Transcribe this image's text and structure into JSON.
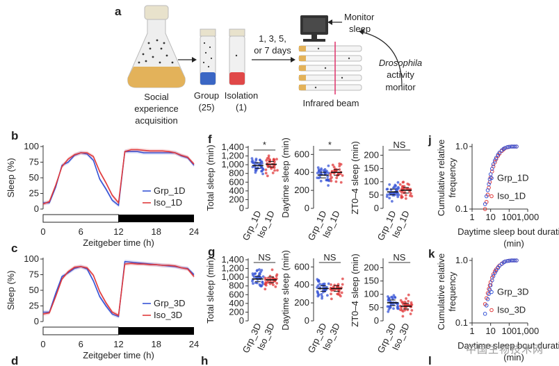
{
  "colors": {
    "group": "#3553d6",
    "iso": "#e0393b",
    "text": "#222222",
    "light_bar": "#ffffff",
    "dark_bar": "#000000"
  },
  "panel_a": {
    "label": "a",
    "flask_caption": [
      "Social",
      "experience",
      "acquisition"
    ],
    "group_caption": [
      "Group",
      "(25)"
    ],
    "iso_caption": [
      "Isolation",
      "(1)"
    ],
    "days": [
      "1, 3, 5,",
      "or 7 days"
    ],
    "monitor_sleep": [
      "Monitor",
      "sleep"
    ],
    "dam": [
      "Drosophila",
      "activity",
      "monitor"
    ],
    "beam": "Infrared beam"
  },
  "watermark": "中国生物技术网",
  "chart_data": [
    {
      "id": "b",
      "type": "line",
      "panel": "b",
      "ylabel": "Sleep (%)",
      "xlabel": "Zeitgeber time (h)",
      "xticks": [
        "0",
        "6",
        "12",
        "18",
        "24"
      ],
      "yticks": [
        "0",
        "25",
        "50",
        "75",
        "100"
      ],
      "xlim": [
        0,
        24
      ],
      "ylim": [
        0,
        100
      ],
      "legend_position": "bottom-right",
      "light_bar": "light 0-12 h, dark 12-24 h",
      "series": [
        {
          "name": "Grp_1D",
          "color": "#3553d6",
          "x": [
            0,
            1,
            2,
            3,
            4,
            5,
            6,
            7,
            8,
            9,
            10,
            11,
            12,
            13,
            14,
            15,
            16,
            17,
            18,
            19,
            20,
            21,
            22,
            23,
            24
          ],
          "y": [
            10,
            10,
            35,
            70,
            75,
            86,
            90,
            88,
            78,
            48,
            32,
            14,
            6,
            92,
            92,
            92,
            90,
            90,
            90,
            90,
            90,
            90,
            85,
            82,
            70
          ]
        },
        {
          "name": "Iso_1D",
          "color": "#e0393b",
          "x": [
            0,
            1,
            2,
            3,
            4,
            5,
            6,
            7,
            8,
            9,
            10,
            11,
            12,
            13,
            14,
            15,
            16,
            17,
            18,
            19,
            20,
            21,
            22,
            23,
            24
          ],
          "y": [
            8,
            12,
            38,
            68,
            80,
            87,
            90,
            90,
            84,
            60,
            42,
            22,
            10,
            92,
            95,
            95,
            94,
            93,
            93,
            93,
            92,
            90,
            86,
            83,
            72
          ]
        }
      ]
    },
    {
      "id": "c",
      "type": "line",
      "panel": "c",
      "ylabel": "Sleep (%)",
      "xlabel": "Zeitgeber time (h)",
      "xticks": [
        "0",
        "6",
        "12",
        "18",
        "24"
      ],
      "yticks": [
        "0",
        "25",
        "50",
        "75",
        "100"
      ],
      "xlim": [
        0,
        24
      ],
      "ylim": [
        0,
        100
      ],
      "legend_position": "bottom-right",
      "light_bar": "light 0-12 h, dark 12-24 h",
      "series": [
        {
          "name": "Grp_3D",
          "color": "#3553d6",
          "x": [
            0,
            1,
            2,
            3,
            4,
            5,
            6,
            7,
            8,
            9,
            10,
            11,
            12,
            13,
            14,
            15,
            16,
            17,
            18,
            19,
            20,
            21,
            22,
            23,
            24
          ],
          "y": [
            15,
            15,
            45,
            72,
            78,
            85,
            88,
            84,
            65,
            40,
            25,
            12,
            8,
            96,
            95,
            94,
            93,
            92,
            91,
            90,
            89,
            88,
            86,
            85,
            75
          ]
        },
        {
          "name": "Iso_3D",
          "color": "#e0393b",
          "x": [
            0,
            1,
            2,
            3,
            4,
            5,
            6,
            7,
            8,
            9,
            10,
            11,
            12,
            13,
            14,
            15,
            16,
            17,
            18,
            19,
            20,
            21,
            22,
            23,
            24
          ],
          "y": [
            12,
            14,
            40,
            68,
            80,
            87,
            88,
            86,
            74,
            48,
            30,
            15,
            10,
            92,
            93,
            92,
            92,
            91,
            91,
            90,
            90,
            89,
            86,
            84,
            72
          ]
        }
      ]
    },
    {
      "id": "f1",
      "type": "scatter",
      "panel": "f",
      "ylabel": "Total sleep (min)",
      "categories": [
        "Grp_1D",
        "Iso_1D"
      ],
      "yticks": [
        "0",
        "200",
        "400",
        "600",
        "800",
        "1,000",
        "1,200",
        "1,400"
      ],
      "ylim": [
        0,
        1400
      ],
      "significance": "*",
      "means": [
        980,
        1010
      ]
    },
    {
      "id": "f2",
      "type": "scatter",
      "panel": "",
      "ylabel": "Daytime sleep (min)",
      "categories": [
        "Grp_1D",
        "Iso_1D"
      ],
      "yticks": [
        "0",
        "200",
        "400",
        "600"
      ],
      "ylim": [
        0,
        680
      ],
      "significance": "*",
      "means": [
        370,
        400
      ]
    },
    {
      "id": "f3",
      "type": "scatter",
      "panel": "",
      "ylabel": "ZT0–4 sleep (min)",
      "categories": [
        "Grp_1D",
        "Iso_1D"
      ],
      "yticks": [
        "0",
        "50",
        "100",
        "150",
        "200"
      ],
      "ylim": [
        0,
        230
      ],
      "significance": "NS",
      "means": [
        62,
        68
      ]
    },
    {
      "id": "g1",
      "type": "scatter",
      "panel": "g",
      "ylabel": "Total sleep (min)",
      "categories": [
        "Grp_3D",
        "Iso_3D"
      ],
      "yticks": [
        "0",
        "200",
        "400",
        "600",
        "800",
        "1,000",
        "1,200",
        "1,400"
      ],
      "ylim": [
        0,
        1400
      ],
      "significance": "NS",
      "means": [
        960,
        940
      ]
    },
    {
      "id": "g2",
      "type": "scatter",
      "panel": "",
      "ylabel": "Daytime sleep (min)",
      "categories": [
        "Grp_3D",
        "Iso_3D"
      ],
      "yticks": [
        "0",
        "200",
        "400",
        "600"
      ],
      "ylim": [
        0,
        680
      ],
      "significance": "NS",
      "means": [
        360,
        360
      ]
    },
    {
      "id": "g3",
      "type": "scatter",
      "panel": "",
      "ylabel": "ZT0–4 sleep (min)",
      "categories": [
        "Grp_3D",
        "Iso_3D"
      ],
      "yticks": [
        "0",
        "50",
        "100",
        "150",
        "200"
      ],
      "ylim": [
        0,
        230
      ],
      "significance": "NS",
      "means": [
        68,
        55
      ]
    },
    {
      "id": "j",
      "type": "scatter",
      "panel": "j",
      "ylabel": "Cumulative relative frequency",
      "xlabel": "Daytime sleep bout duration (min)",
      "xscale": "log",
      "yscale": "log",
      "xticks": [
        "1",
        "10",
        "100",
        "1,000"
      ],
      "yticks": [
        "0.1",
        "1.0"
      ],
      "xlim": [
        1,
        1000
      ],
      "ylim": [
        0.1,
        1.0
      ],
      "legend_position": "bottom-right",
      "series": [
        {
          "name": "Grp_1D",
          "color": "#3553d6",
          "x": [
            5,
            6,
            7,
            8,
            9,
            10,
            12,
            14,
            17,
            20,
            25,
            30,
            40,
            50,
            60,
            80,
            100,
            130,
            160,
            200,
            250
          ],
          "y": [
            0.12,
            0.16,
            0.2,
            0.25,
            0.3,
            0.36,
            0.44,
            0.52,
            0.6,
            0.66,
            0.74,
            0.8,
            0.87,
            0.92,
            0.95,
            0.98,
            0.99,
            1.0,
            1.0,
            1.0,
            1.0
          ]
        },
        {
          "name": "Iso_1D",
          "color": "#e0393b",
          "x": [
            5,
            6,
            7,
            8,
            9,
            10,
            12,
            14,
            17,
            20,
            25,
            30,
            40,
            50,
            60,
            80,
            100,
            130,
            160,
            200,
            250
          ],
          "y": [
            0.1,
            0.13,
            0.17,
            0.22,
            0.27,
            0.32,
            0.4,
            0.48,
            0.56,
            0.63,
            0.71,
            0.77,
            0.85,
            0.9,
            0.94,
            0.97,
            0.99,
            1.0,
            1.0,
            1.0,
            1.0
          ]
        }
      ]
    },
    {
      "id": "k",
      "type": "scatter",
      "panel": "k",
      "ylabel": "Cumulative relative frequency",
      "xlabel": "Daytime sleep bout duration (min)",
      "xscale": "log",
      "yscale": "log",
      "xticks": [
        "1",
        "10",
        "100",
        "1,000"
      ],
      "yticks": [
        "0.1",
        "1.0"
      ],
      "xlim": [
        1,
        1000
      ],
      "ylim": [
        0.1,
        1.0
      ],
      "legend_position": "bottom-right",
      "series": [
        {
          "name": "Grp_3D",
          "color": "#3553d6",
          "x": [
            5,
            6,
            7,
            8,
            9,
            10,
            12,
            14,
            17,
            20,
            25,
            30,
            40,
            50,
            60,
            80,
            100,
            130,
            160,
            200,
            250
          ],
          "y": [
            0.14,
            0.19,
            0.24,
            0.29,
            0.34,
            0.4,
            0.48,
            0.56,
            0.63,
            0.69,
            0.76,
            0.82,
            0.88,
            0.93,
            0.96,
            0.98,
            0.99,
            1.0,
            1.0,
            1.0,
            1.0
          ]
        },
        {
          "name": "Iso_3D",
          "color": "#e0393b",
          "x": [
            5,
            6,
            7,
            8,
            9,
            10,
            12,
            14,
            17,
            20,
            25,
            30,
            40,
            50,
            60,
            80,
            100,
            130,
            160,
            200,
            250
          ],
          "y": [
            0.2,
            0.25,
            0.3,
            0.35,
            0.4,
            0.45,
            0.53,
            0.6,
            0.67,
            0.72,
            0.78,
            0.83,
            0.89,
            0.93,
            0.96,
            0.98,
            0.99,
            1.0,
            1.0,
            1.0,
            1.0
          ]
        }
      ]
    }
  ],
  "bottom_panels": [
    "d",
    "h",
    "l"
  ]
}
